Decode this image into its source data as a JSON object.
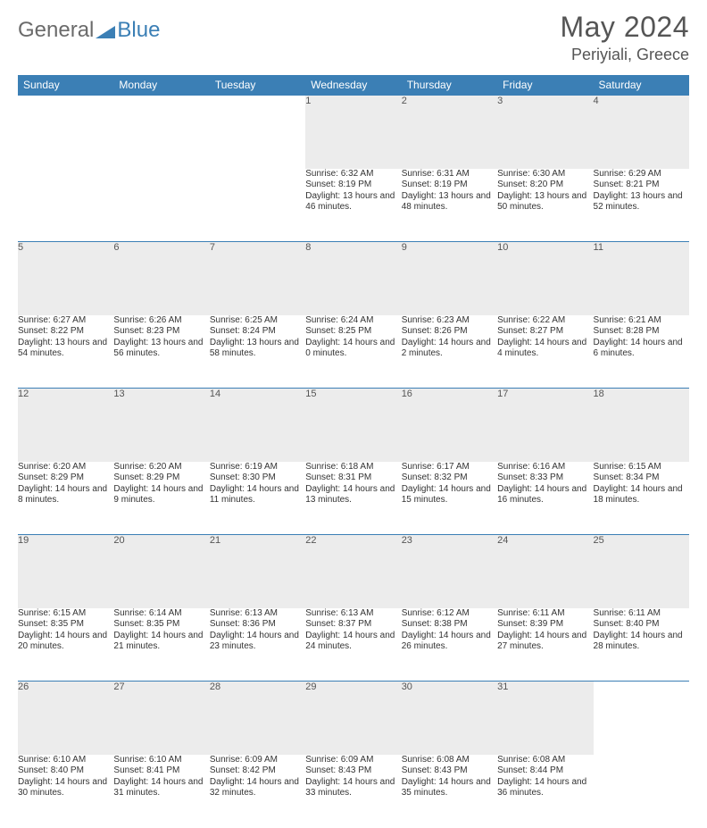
{
  "logo": {
    "text1": "General",
    "text2": "Blue"
  },
  "title": "May 2024",
  "location": "Periyiali, Greece",
  "colors": {
    "header_bg": "#3b7fb5",
    "header_fg": "#ffffff",
    "daynum_bg": "#ececec",
    "border": "#3b7fb5",
    "text": "#333333",
    "title_color": "#555555"
  },
  "dayNames": [
    "Sunday",
    "Monday",
    "Tuesday",
    "Wednesday",
    "Thursday",
    "Friday",
    "Saturday"
  ],
  "weeks": [
    [
      {
        "n": "",
        "sr": "",
        "ss": "",
        "dl": ""
      },
      {
        "n": "",
        "sr": "",
        "ss": "",
        "dl": ""
      },
      {
        "n": "",
        "sr": "",
        "ss": "",
        "dl": ""
      },
      {
        "n": "1",
        "sr": "Sunrise: 6:32 AM",
        "ss": "Sunset: 8:19 PM",
        "dl": "Daylight: 13 hours and 46 minutes."
      },
      {
        "n": "2",
        "sr": "Sunrise: 6:31 AM",
        "ss": "Sunset: 8:19 PM",
        "dl": "Daylight: 13 hours and 48 minutes."
      },
      {
        "n": "3",
        "sr": "Sunrise: 6:30 AM",
        "ss": "Sunset: 8:20 PM",
        "dl": "Daylight: 13 hours and 50 minutes."
      },
      {
        "n": "4",
        "sr": "Sunrise: 6:29 AM",
        "ss": "Sunset: 8:21 PM",
        "dl": "Daylight: 13 hours and 52 minutes."
      }
    ],
    [
      {
        "n": "5",
        "sr": "Sunrise: 6:27 AM",
        "ss": "Sunset: 8:22 PM",
        "dl": "Daylight: 13 hours and 54 minutes."
      },
      {
        "n": "6",
        "sr": "Sunrise: 6:26 AM",
        "ss": "Sunset: 8:23 PM",
        "dl": "Daylight: 13 hours and 56 minutes."
      },
      {
        "n": "7",
        "sr": "Sunrise: 6:25 AM",
        "ss": "Sunset: 8:24 PM",
        "dl": "Daylight: 13 hours and 58 minutes."
      },
      {
        "n": "8",
        "sr": "Sunrise: 6:24 AM",
        "ss": "Sunset: 8:25 PM",
        "dl": "Daylight: 14 hours and 0 minutes."
      },
      {
        "n": "9",
        "sr": "Sunrise: 6:23 AM",
        "ss": "Sunset: 8:26 PM",
        "dl": "Daylight: 14 hours and 2 minutes."
      },
      {
        "n": "10",
        "sr": "Sunrise: 6:22 AM",
        "ss": "Sunset: 8:27 PM",
        "dl": "Daylight: 14 hours and 4 minutes."
      },
      {
        "n": "11",
        "sr": "Sunrise: 6:21 AM",
        "ss": "Sunset: 8:28 PM",
        "dl": "Daylight: 14 hours and 6 minutes."
      }
    ],
    [
      {
        "n": "12",
        "sr": "Sunrise: 6:20 AM",
        "ss": "Sunset: 8:29 PM",
        "dl": "Daylight: 14 hours and 8 minutes."
      },
      {
        "n": "13",
        "sr": "Sunrise: 6:20 AM",
        "ss": "Sunset: 8:29 PM",
        "dl": "Daylight: 14 hours and 9 minutes."
      },
      {
        "n": "14",
        "sr": "Sunrise: 6:19 AM",
        "ss": "Sunset: 8:30 PM",
        "dl": "Daylight: 14 hours and 11 minutes."
      },
      {
        "n": "15",
        "sr": "Sunrise: 6:18 AM",
        "ss": "Sunset: 8:31 PM",
        "dl": "Daylight: 14 hours and 13 minutes."
      },
      {
        "n": "16",
        "sr": "Sunrise: 6:17 AM",
        "ss": "Sunset: 8:32 PM",
        "dl": "Daylight: 14 hours and 15 minutes."
      },
      {
        "n": "17",
        "sr": "Sunrise: 6:16 AM",
        "ss": "Sunset: 8:33 PM",
        "dl": "Daylight: 14 hours and 16 minutes."
      },
      {
        "n": "18",
        "sr": "Sunrise: 6:15 AM",
        "ss": "Sunset: 8:34 PM",
        "dl": "Daylight: 14 hours and 18 minutes."
      }
    ],
    [
      {
        "n": "19",
        "sr": "Sunrise: 6:15 AM",
        "ss": "Sunset: 8:35 PM",
        "dl": "Daylight: 14 hours and 20 minutes."
      },
      {
        "n": "20",
        "sr": "Sunrise: 6:14 AM",
        "ss": "Sunset: 8:35 PM",
        "dl": "Daylight: 14 hours and 21 minutes."
      },
      {
        "n": "21",
        "sr": "Sunrise: 6:13 AM",
        "ss": "Sunset: 8:36 PM",
        "dl": "Daylight: 14 hours and 23 minutes."
      },
      {
        "n": "22",
        "sr": "Sunrise: 6:13 AM",
        "ss": "Sunset: 8:37 PM",
        "dl": "Daylight: 14 hours and 24 minutes."
      },
      {
        "n": "23",
        "sr": "Sunrise: 6:12 AM",
        "ss": "Sunset: 8:38 PM",
        "dl": "Daylight: 14 hours and 26 minutes."
      },
      {
        "n": "24",
        "sr": "Sunrise: 6:11 AM",
        "ss": "Sunset: 8:39 PM",
        "dl": "Daylight: 14 hours and 27 minutes."
      },
      {
        "n": "25",
        "sr": "Sunrise: 6:11 AM",
        "ss": "Sunset: 8:40 PM",
        "dl": "Daylight: 14 hours and 28 minutes."
      }
    ],
    [
      {
        "n": "26",
        "sr": "Sunrise: 6:10 AM",
        "ss": "Sunset: 8:40 PM",
        "dl": "Daylight: 14 hours and 30 minutes."
      },
      {
        "n": "27",
        "sr": "Sunrise: 6:10 AM",
        "ss": "Sunset: 8:41 PM",
        "dl": "Daylight: 14 hours and 31 minutes."
      },
      {
        "n": "28",
        "sr": "Sunrise: 6:09 AM",
        "ss": "Sunset: 8:42 PM",
        "dl": "Daylight: 14 hours and 32 minutes."
      },
      {
        "n": "29",
        "sr": "Sunrise: 6:09 AM",
        "ss": "Sunset: 8:43 PM",
        "dl": "Daylight: 14 hours and 33 minutes."
      },
      {
        "n": "30",
        "sr": "Sunrise: 6:08 AM",
        "ss": "Sunset: 8:43 PM",
        "dl": "Daylight: 14 hours and 35 minutes."
      },
      {
        "n": "31",
        "sr": "Sunrise: 6:08 AM",
        "ss": "Sunset: 8:44 PM",
        "dl": "Daylight: 14 hours and 36 minutes."
      },
      {
        "n": "",
        "sr": "",
        "ss": "",
        "dl": ""
      }
    ]
  ]
}
